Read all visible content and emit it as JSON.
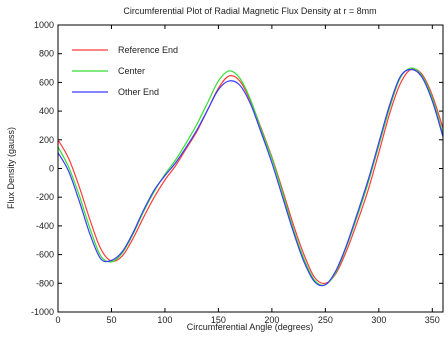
{
  "chart_data": {
    "type": "line",
    "title": "Circumferential Plot of Radial Magnetic Flux Density at r = 8mm",
    "xlabel": "Circumferential Angle (degrees)",
    "ylabel": "Flux Density (gauss)",
    "xlim": [
      0,
      360
    ],
    "ylim": [
      -1000,
      1000
    ],
    "xticks": [
      0,
      50,
      100,
      150,
      200,
      250,
      300,
      350
    ],
    "yticks": [
      -1000,
      -800,
      -600,
      -400,
      -200,
      0,
      200,
      400,
      600,
      800,
      1000
    ],
    "grid": false,
    "legend_position": "top-left",
    "x": [
      0,
      10,
      20,
      30,
      40,
      50,
      60,
      70,
      80,
      90,
      100,
      110,
      120,
      130,
      140,
      150,
      160,
      170,
      180,
      190,
      200,
      210,
      220,
      230,
      240,
      250,
      260,
      270,
      280,
      290,
      300,
      310,
      320,
      330,
      340,
      350,
      360
    ],
    "series": [
      {
        "name": "Reference End",
        "color": "#ff3b3b",
        "values": [
          200,
          70,
          -130,
          -360,
          -560,
          -645,
          -610,
          -490,
          -340,
          -200,
          -80,
          20,
          140,
          260,
          410,
          560,
          645,
          610,
          470,
          280,
          80,
          -150,
          -390,
          -600,
          -760,
          -800,
          -730,
          -570,
          -370,
          -150,
          110,
          380,
          590,
          690,
          660,
          510,
          280
        ]
      },
      {
        "name": "Center",
        "color": "#33dd33",
        "values": [
          150,
          10,
          -190,
          -420,
          -610,
          -650,
          -590,
          -460,
          -300,
          -160,
          -40,
          60,
          180,
          310,
          460,
          610,
          680,
          630,
          480,
          270,
          70,
          -170,
          -420,
          -630,
          -780,
          -810,
          -720,
          -540,
          -330,
          -100,
          160,
          420,
          630,
          700,
          650,
          490,
          240
        ]
      },
      {
        "name": "Other End",
        "color": "#3b3bff",
        "values": [
          110,
          -20,
          -230,
          -460,
          -630,
          -640,
          -580,
          -450,
          -290,
          -150,
          -50,
          40,
          150,
          270,
          410,
          550,
          610,
          580,
          450,
          250,
          40,
          -200,
          -440,
          -650,
          -790,
          -810,
          -710,
          -530,
          -310,
          -80,
          180,
          440,
          640,
          690,
          640,
          470,
          220
        ]
      }
    ]
  }
}
